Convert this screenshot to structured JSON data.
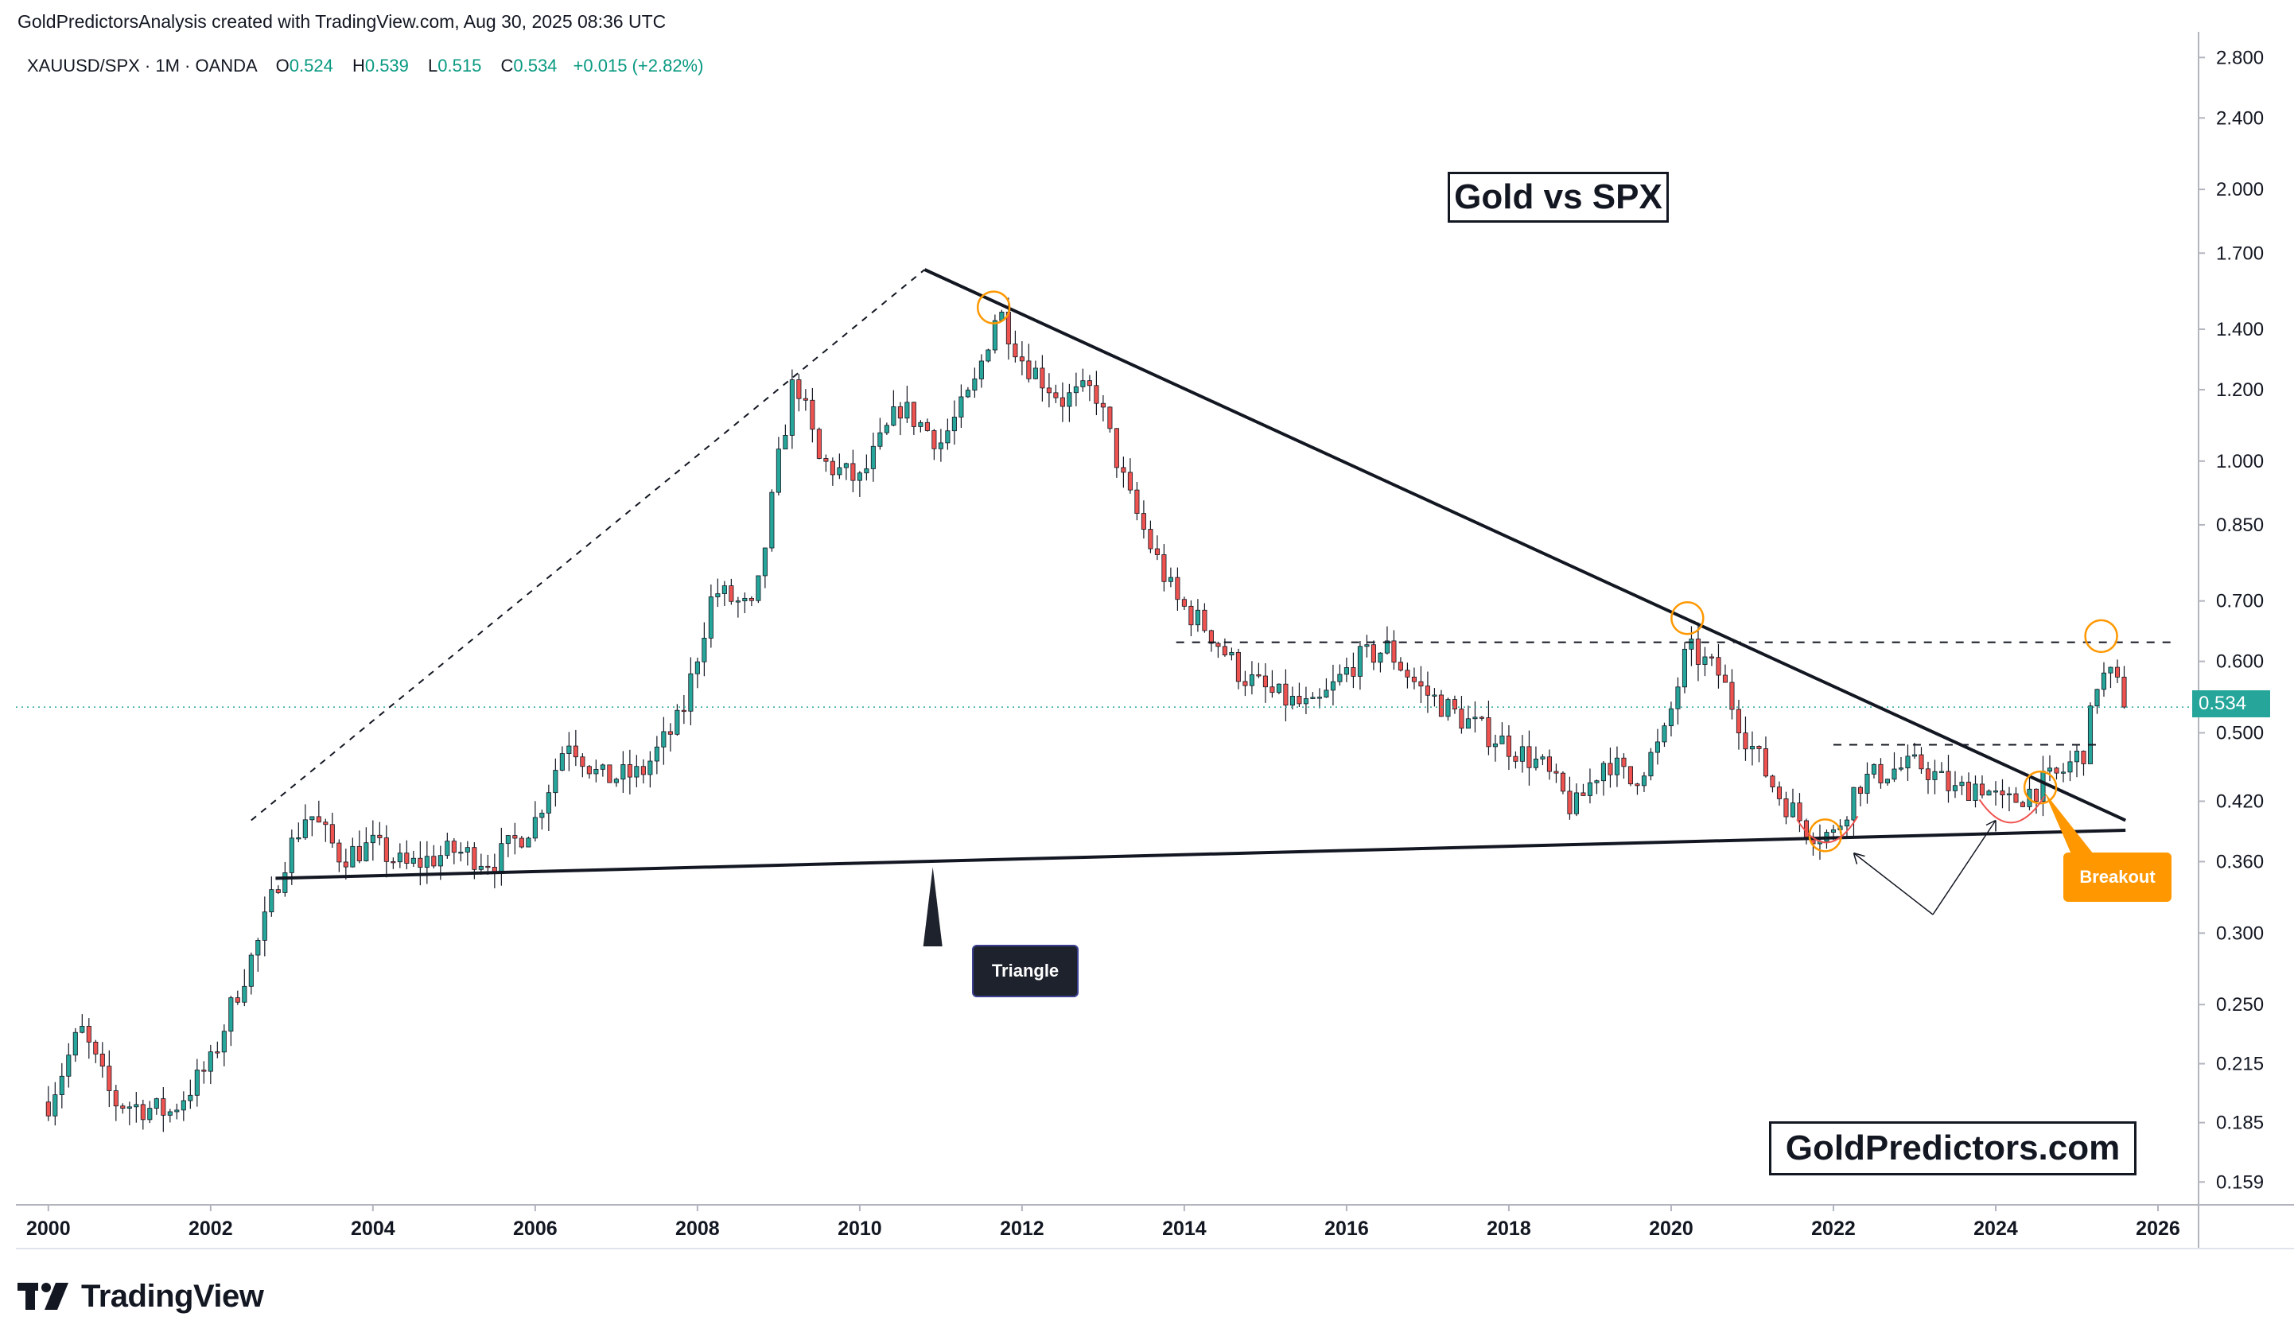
{
  "header": {
    "attribution": "GoldPredictorsAnalysis created with TradingView.com, Aug 30, 2025 08:36 UTC"
  },
  "legend": {
    "symbol": "XAUUSD/SPX · 1M · OANDA",
    "open_label": "O",
    "open": "0.524",
    "high_label": "H",
    "high": "0.539",
    "low_label": "L",
    "low": "0.515",
    "close_label": "C",
    "close": "0.534",
    "change": "+0.015 (+2.82%)"
  },
  "annotations": {
    "title": "Gold vs SPX",
    "brand": "GoldPredictors.com",
    "triangle_label": "Triangle",
    "breakout_label": "Breakout"
  },
  "price_tag": "0.534",
  "footer": {
    "logo_text": "TradingView"
  },
  "colors": {
    "up": "#26a69a",
    "down": "#ef5350",
    "trendline": "#131722",
    "circle": "#ff9800",
    "last_price_line": "#26a69a",
    "arc": "#ef5350"
  },
  "chart_data": {
    "type": "candlestick",
    "scale": "log",
    "x_ticks": [
      "2000",
      "2002",
      "2004",
      "2006",
      "2008",
      "2010",
      "2012",
      "2014",
      "2016",
      "2018",
      "2020",
      "2022",
      "2024",
      "2026"
    ],
    "y_ticks": [
      "2.800",
      "2.400",
      "2.000",
      "1.700",
      "1.400",
      "1.200",
      "1.000",
      "0.850",
      "0.700",
      "0.600",
      "0.500",
      "0.420",
      "0.360",
      "0.300",
      "0.250",
      "0.215",
      "0.185",
      "0.159"
    ],
    "ylim": [
      0.15,
      2.9
    ],
    "xlim": [
      1999.6,
      2026.5
    ],
    "last_price": 0.534,
    "anchors": [
      [
        2000.0,
        0.195
      ],
      [
        2000.4,
        0.235
      ],
      [
        2000.8,
        0.195
      ],
      [
        2001.5,
        0.19
      ],
      [
        2002.0,
        0.215
      ],
      [
        2002.3,
        0.255
      ],
      [
        2002.6,
        0.295
      ],
      [
        2002.9,
        0.36
      ],
      [
        2003.2,
        0.41
      ],
      [
        2003.6,
        0.365
      ],
      [
        2004.0,
        0.375
      ],
      [
        2004.4,
        0.355
      ],
      [
        2005.0,
        0.37
      ],
      [
        2005.5,
        0.36
      ],
      [
        2006.0,
        0.4
      ],
      [
        2006.4,
        0.495
      ],
      [
        2006.8,
        0.445
      ],
      [
        2007.3,
        0.45
      ],
      [
        2007.8,
        0.52
      ],
      [
        2008.2,
        0.72
      ],
      [
        2008.7,
        0.68
      ],
      [
        2009.0,
        1.0
      ],
      [
        2009.2,
        1.25
      ],
      [
        2009.5,
        1.0
      ],
      [
        2010.0,
        0.95
      ],
      [
        2010.5,
        1.15
      ],
      [
        2011.0,
        1.05
      ],
      [
        2011.4,
        1.2
      ],
      [
        2011.7,
        1.48
      ],
      [
        2012.0,
        1.3
      ],
      [
        2012.5,
        1.17
      ],
      [
        2012.9,
        1.2
      ],
      [
        2013.3,
        0.92
      ],
      [
        2013.6,
        0.8
      ],
      [
        2013.9,
        0.7
      ],
      [
        2014.3,
        0.65
      ],
      [
        2014.7,
        0.58
      ],
      [
        2015.1,
        0.55
      ],
      [
        2015.6,
        0.53
      ],
      [
        2016.1,
        0.6
      ],
      [
        2016.5,
        0.62
      ],
      [
        2016.9,
        0.56
      ],
      [
        2017.4,
        0.52
      ],
      [
        2017.9,
        0.49
      ],
      [
        2018.4,
        0.46
      ],
      [
        2018.8,
        0.41
      ],
      [
        2019.2,
        0.47
      ],
      [
        2019.5,
        0.44
      ],
      [
        2019.9,
        0.49
      ],
      [
        2020.2,
        0.62
      ],
      [
        2020.6,
        0.58
      ],
      [
        2020.9,
        0.5
      ],
      [
        2021.3,
        0.43
      ],
      [
        2021.7,
        0.39
      ],
      [
        2022.0,
        0.385
      ],
      [
        2022.3,
        0.44
      ],
      [
        2022.7,
        0.455
      ],
      [
        2023.1,
        0.46
      ],
      [
        2023.5,
        0.43
      ],
      [
        2023.8,
        0.44
      ],
      [
        2024.1,
        0.415
      ],
      [
        2024.4,
        0.43
      ],
      [
        2024.8,
        0.45
      ],
      [
        2025.1,
        0.48
      ],
      [
        2025.25,
        0.57
      ],
      [
        2025.4,
        0.58
      ],
      [
        2025.66,
        0.534
      ]
    ],
    "levels": [
      {
        "name": "resistance-2020",
        "value": 0.63,
        "from": 2013.9,
        "to": 2026.2
      },
      {
        "name": "range-top-2023",
        "value": 0.485,
        "from": 2022.0,
        "to": 2025.3
      }
    ],
    "trendlines": [
      {
        "name": "upper-trendline",
        "points": [
          [
            2010.8,
            1.63
          ],
          [
            2025.6,
            0.4
          ]
        ]
      },
      {
        "name": "lower-trendline",
        "points": [
          [
            2002.8,
            0.345
          ],
          [
            2025.6,
            0.39
          ]
        ]
      },
      {
        "name": "dashed-rise",
        "points": [
          [
            2002.5,
            0.4
          ],
          [
            2010.8,
            1.63
          ]
        ]
      }
    ],
    "circles": [
      [
        2011.65,
        1.48
      ],
      [
        2020.2,
        0.67
      ],
      [
        2021.9,
        0.385
      ],
      [
        2024.55,
        0.435
      ],
      [
        2025.3,
        0.64
      ]
    ],
    "arcs": [
      [
        2021.55,
        2022.3,
        0.385
      ],
      [
        2023.8,
        2024.6,
        0.405
      ]
    ]
  }
}
